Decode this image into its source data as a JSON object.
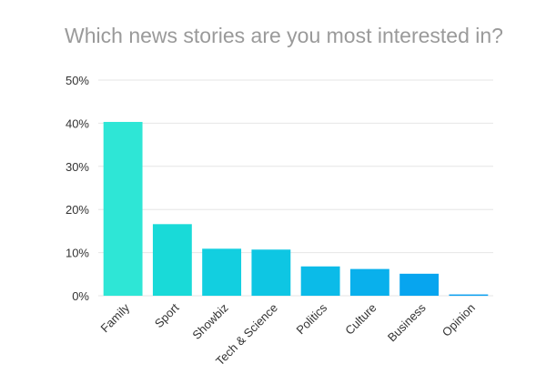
{
  "chart_data": {
    "type": "bar",
    "title": "Which news stories are you most interested in?",
    "xlabel": "",
    "ylabel": "",
    "categories": [
      "Family",
      "Sport",
      "Showbiz",
      "Tech & Science",
      "Politics",
      "Culture",
      "Business",
      "Opinion"
    ],
    "values": [
      40.3,
      16.6,
      10.9,
      10.7,
      6.8,
      6.2,
      5.1,
      0.3
    ],
    "ylim": [
      0,
      50
    ],
    "yticks": [
      "0%",
      "10%",
      "20%",
      "30%",
      "40%",
      "50%"
    ],
    "grid": true,
    "legend": "none",
    "colors": [
      "#2ee6d6",
      "#19dad8",
      "#12cfe0",
      "#0ec6e3",
      "#0bbbe8",
      "#09b0ec",
      "#07a5ef",
      "#0ba0f0"
    ]
  }
}
